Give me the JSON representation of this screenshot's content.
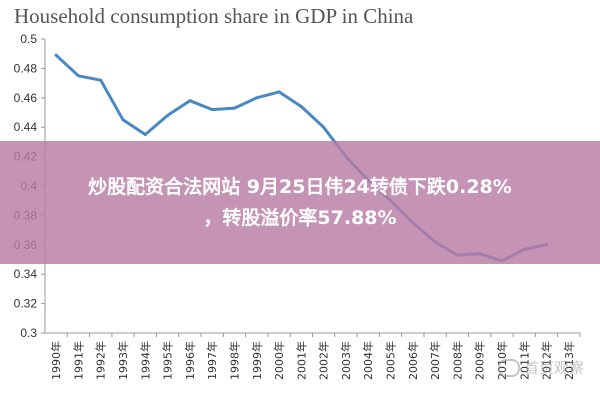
{
  "chart_data": {
    "type": "line",
    "title": "Household consumption share in GDP in China",
    "xlabel": "",
    "ylabel": "",
    "ylim": [
      0.3,
      0.5
    ],
    "y_ticks": [
      "0.3",
      "0.32",
      "0.34",
      "0.36",
      "0.38",
      "0.4",
      "0.42",
      "0.44",
      "0.46",
      "0.48",
      "0.5"
    ],
    "categories": [
      "1990年",
      "1991年",
      "1992年",
      "1993年",
      "1994年",
      "1995年",
      "1996年",
      "1997年",
      "1998年",
      "1999年",
      "2000年",
      "2001年",
      "2002年",
      "2003年",
      "2004年",
      "2005年",
      "2006年",
      "2007年",
      "2008年",
      "2009年",
      "2010年",
      "2011年",
      "2012年",
      "2013年"
    ],
    "series": [
      {
        "color": "#4a87c5",
        "values": [
          0.489,
          0.475,
          0.472,
          0.445,
          0.435,
          0.448,
          0.458,
          0.452,
          0.453,
          0.46,
          0.464,
          0.454,
          0.44,
          0.42,
          0.404,
          0.39,
          0.375,
          0.362,
          0.353,
          0.354,
          0.349,
          0.357,
          0.36,
          null
        ]
      }
    ],
    "grid": false,
    "legend": "none"
  },
  "banner": {
    "line1": "炒股配资合法网站 9月25日伟24转债下跌0.28%",
    "line2": "，转股溢价率57.88%"
  },
  "watermark": {
    "text": "首页观察"
  }
}
